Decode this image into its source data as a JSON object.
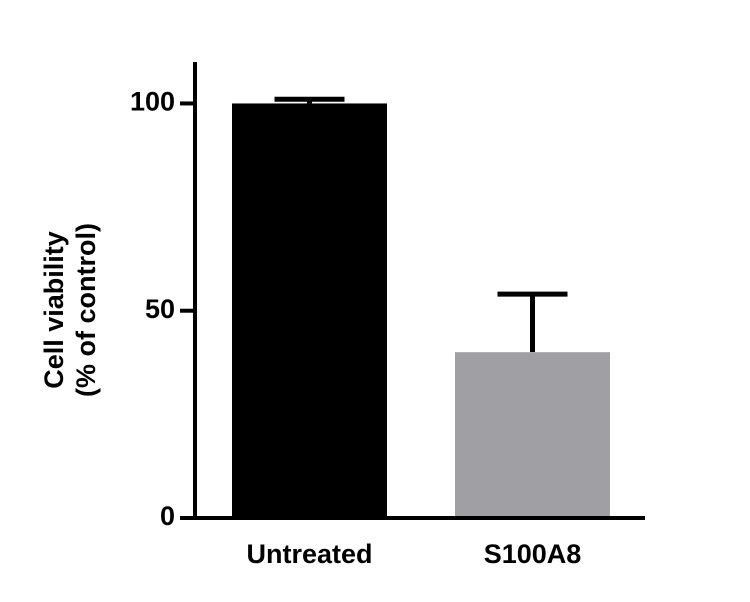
{
  "chart_data": {
    "type": "bar",
    "ylabel": [
      "Cell viability",
      "(% of control)"
    ],
    "categories": [
      "Untreated",
      "S100A8"
    ],
    "values": [
      100,
      40
    ],
    "errors": [
      1,
      14
    ],
    "colors": [
      "#000000",
      "#a0a0a4"
    ],
    "ylim": [
      0,
      110
    ],
    "yticks": [
      0,
      50,
      100
    ],
    "grid": false
  }
}
